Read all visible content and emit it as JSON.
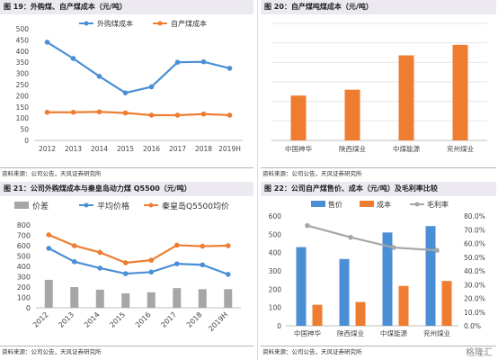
{
  "panels": [
    {
      "title": "图 19：外购煤、自产煤成本（元/吨）",
      "source": "资料来源：公司公告，天风证券研究所"
    },
    {
      "title": "图 20：自产煤吨煤成本（元/吨）",
      "source": "资料来源：公司公告，天风证券研究所"
    },
    {
      "title": "图 21：公司外购煤成本与秦皇岛动力煤 Q5500（元/吨）",
      "source": "资料来源：公司公告，天风证券研究所"
    },
    {
      "title": "图 22：公司自产煤售价、成本（元/吨）及毛利率比较",
      "source": "资料来源：公司公告，天风证券研究所"
    }
  ],
  "watermark": "格隆汇",
  "colors": {
    "blue": "#4a8fd6",
    "orange": "#ee7d31",
    "gray": "#a6a6a6"
  },
  "chart_data": [
    {
      "type": "line",
      "categories": [
        "2012",
        "2013",
        "2014",
        "2015",
        "2016",
        "2017",
        "2018",
        "2019H"
      ],
      "series": [
        {
          "name": "外购煤成本",
          "values": [
            440,
            367,
            287,
            213,
            240,
            350,
            352,
            323
          ],
          "color": "#4a8fd6"
        },
        {
          "name": "自产煤成本",
          "values": [
            126,
            126,
            128,
            123,
            113,
            113,
            118,
            113
          ],
          "color": "#ee7d31"
        }
      ],
      "ylim": [
        0,
        500
      ],
      "yticks": [
        "0",
        "50",
        "100",
        "150",
        "200",
        "250",
        "300",
        "350",
        "400",
        "450",
        "500"
      ],
      "legend": "top"
    },
    {
      "type": "bar",
      "categories": [
        "中国神华",
        "陕西煤业",
        "中煤能源",
        "兖州煤业"
      ],
      "values": [
        115,
        130,
        218,
        245
      ],
      "color": "#ee7d31",
      "ylim": [
        0,
        300
      ],
      "grid": true
    },
    {
      "type": "bar+line",
      "categories": [
        "2012",
        "2013",
        "2014",
        "2015",
        "2016",
        "2017",
        "2018",
        "2019H"
      ],
      "series": [
        {
          "name": "价差",
          "kind": "bar",
          "values": [
            270,
            200,
            175,
            140,
            150,
            190,
            180,
            180
          ],
          "color": "#a6a6a6"
        },
        {
          "name": "平均价格",
          "kind": "line",
          "values": [
            575,
            445,
            383,
            330,
            345,
            425,
            415,
            323
          ],
          "color": "#4a8fd6"
        },
        {
          "name": "秦皇岛Q5500均价",
          "kind": "line",
          "values": [
            705,
            600,
            535,
            435,
            460,
            605,
            595,
            600
          ],
          "color": "#ee7d31"
        }
      ],
      "ylim": [
        0,
        800
      ],
      "yticks": [
        "0",
        "100",
        "200",
        "300",
        "400",
        "500",
        "600",
        "700",
        "800"
      ],
      "legend": "top"
    },
    {
      "type": "bar+line",
      "categories": [
        "中国神华",
        "陕西煤业",
        "中煤能源",
        "兖州煤业"
      ],
      "series": [
        {
          "name": "售价",
          "kind": "bar",
          "values": [
            430,
            365,
            510,
            545
          ],
          "color": "#4a8fd6"
        },
        {
          "name": "成本",
          "kind": "bar",
          "values": [
            115,
            130,
            218,
            245
          ],
          "color": "#ee7d31"
        },
        {
          "name": "毛利率",
          "kind": "line",
          "axis": "right",
          "values": [
            73.0,
            64.5,
            57.0,
            55.0
          ],
          "color": "#a6a6a6"
        }
      ],
      "ylim": [
        0,
        600
      ],
      "yticks": [
        "0",
        "100",
        "200",
        "300",
        "400",
        "500",
        "600"
      ],
      "y2lim": [
        0,
        80
      ],
      "y2ticks": [
        "0.0%",
        "10.0%",
        "20.0%",
        "30.0%",
        "40.0%",
        "50.0%",
        "60.0%",
        "70.0%",
        "80.0%"
      ],
      "legend": "top"
    }
  ]
}
